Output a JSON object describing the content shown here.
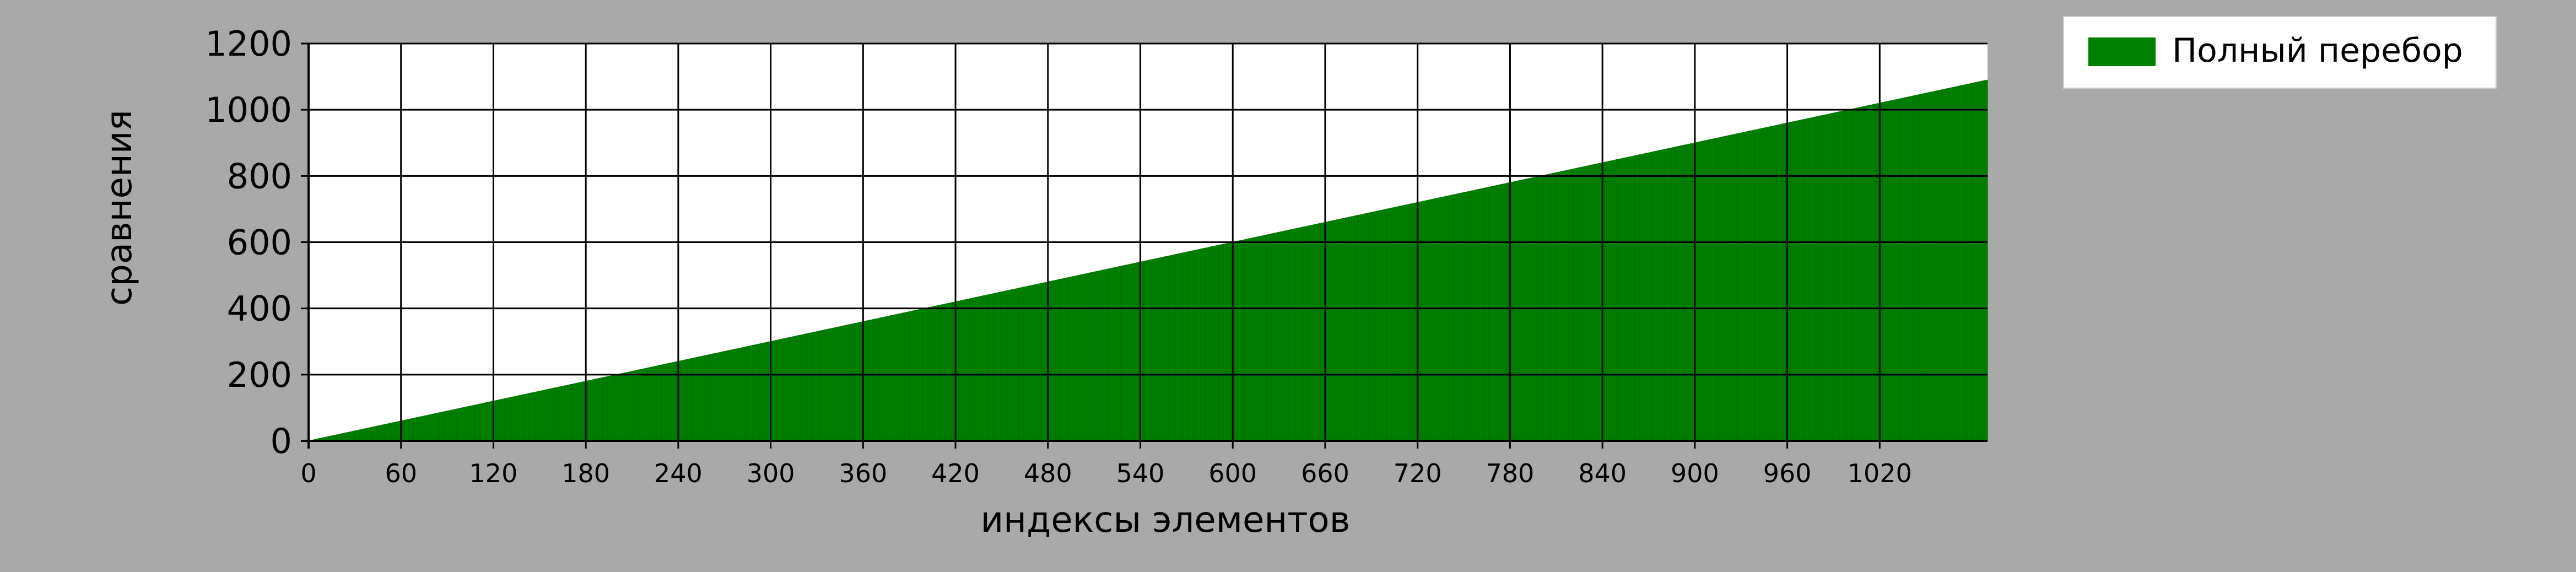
{
  "chart_data": {
    "type": "bar",
    "xlabel": "индексы элементов",
    "ylabel": "сравнения",
    "xlim": [
      0,
      1090
    ],
    "ylim": [
      0,
      1200
    ],
    "x_ticks": [
      0,
      60,
      120,
      180,
      240,
      300,
      360,
      420,
      480,
      540,
      600,
      660,
      720,
      780,
      840,
      900,
      960,
      1020
    ],
    "y_ticks": [
      0,
      200,
      400,
      600,
      800,
      1000,
      1200
    ],
    "grid": true,
    "legend_position": "top-right, outside plot",
    "series": [
      {
        "name": "Полный перебор",
        "color": "#008000",
        "formula": "y = x + 1 for each index",
        "x_start": 0,
        "x_end": 1089,
        "y_start": 1,
        "y_end": 1090
      }
    ]
  },
  "colors": {
    "background": "#a9a9a9",
    "plot_background": "#ffffff",
    "bar": "#008000",
    "grid": "#000000"
  }
}
